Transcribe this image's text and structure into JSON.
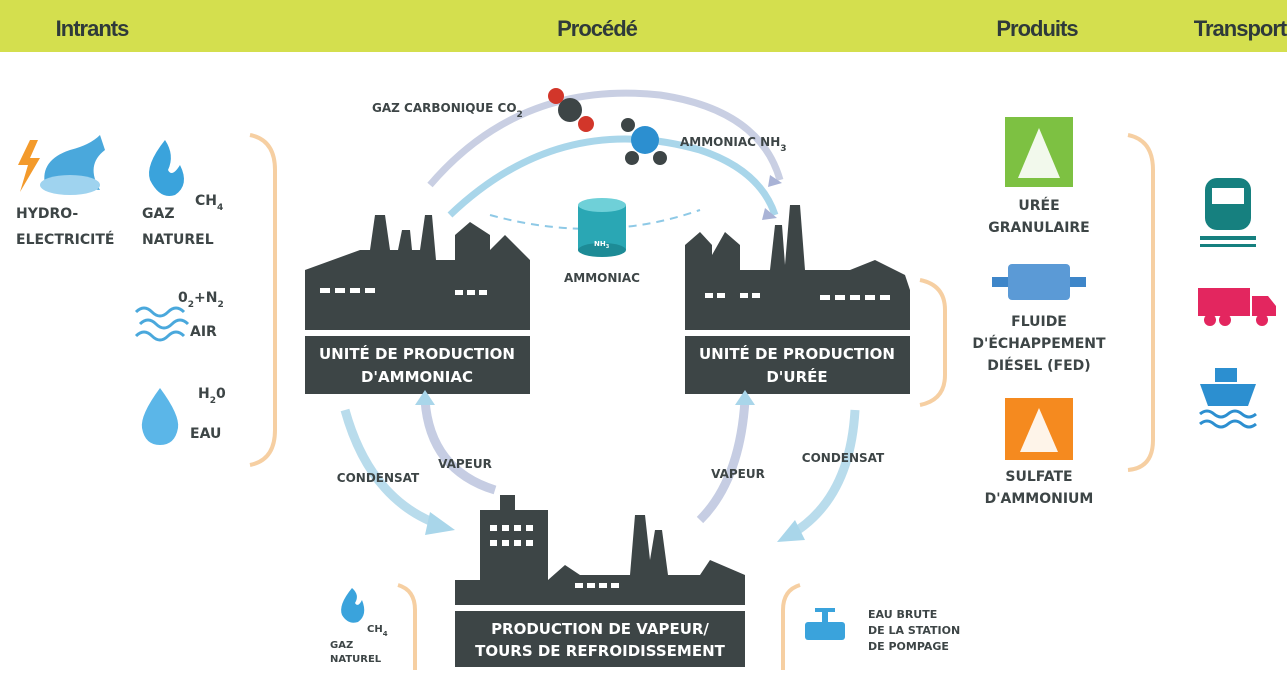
{
  "header": {
    "columns": [
      "Intrants",
      "Procédé",
      "Produits",
      "Transport"
    ]
  },
  "inputs": [
    {
      "label": [
        "HYDRO-",
        "ELECTRICITÉ"
      ]
    },
    {
      "label": [
        "GAZ",
        "NATUREL"
      ],
      "formula": [
        "CH",
        "4"
      ]
    },
    {
      "label": [
        "AIR"
      ],
      "formula": [
        "0",
        "2",
        "+N",
        "2"
      ]
    },
    {
      "label": [
        "EAU"
      ],
      "formula": [
        "H",
        "2",
        "0"
      ]
    }
  ],
  "process": {
    "flows": [
      {
        "label": [
          "GAZ CARBONIQUE CO",
          "2"
        ]
      },
      {
        "label": [
          "AMMONIAC NH",
          "3"
        ]
      }
    ],
    "tank": {
      "formula": [
        "NH",
        "3"
      ],
      "label": "AMMONIAC"
    },
    "units": [
      {
        "label": [
          "UNITÉ DE PRODUCTION",
          "D'AMMONIAC"
        ]
      },
      {
        "label": [
          "UNITÉ DE PRODUCTION",
          "D'URÉE"
        ]
      },
      {
        "label": [
          "PRODUCTION DE VAPEUR/",
          "TOURS DE REFROIDISSEMENT"
        ]
      }
    ],
    "arrows": [
      "CONDENSAT",
      "VAPEUR",
      "VAPEUR",
      "CONDENSAT"
    ],
    "steam_inputs": [
      {
        "label": [
          "GAZ",
          "NATUREL"
        ],
        "formula": [
          "CH",
          "4"
        ]
      },
      {
        "label": [
          "EAU BRUTE",
          "DE LA STATION",
          "DE POMPAGE"
        ]
      }
    ]
  },
  "products": [
    {
      "label": [
        "URÉE",
        "GRANULAIRE"
      ]
    },
    {
      "label": [
        "FLUIDE",
        "D'ÉCHAPPEMENT",
        "DIÉSEL (FED)"
      ]
    },
    {
      "label": [
        "SULFATE",
        "D'AMMONIUM"
      ]
    }
  ]
}
